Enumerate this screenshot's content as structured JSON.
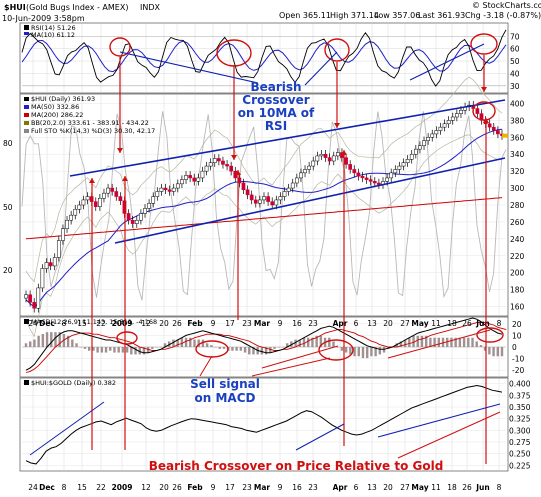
{
  "chart_data": {
    "type": "line",
    "header": {
      "symbol": "$HUI",
      "name": "(Gold Bugs Index - AMEX)",
      "exchange": "INDX",
      "date": "10-Jun-2009 3:58pm",
      "quote": {
        "open": "Open 365.11",
        "high": "High 371.14",
        "low": "Low 357.06",
        "last": "Last 361.93",
        "chg": "Chg -3.18 (-0.87%)"
      },
      "brand": "© StockCharts.com"
    },
    "x_tick_labels": [
      "24",
      "Dec",
      "8",
      "15",
      "22",
      "2009",
      "12",
      "20",
      "26",
      "Feb",
      "9",
      "17",
      "23",
      "Mar",
      "9",
      "16",
      "23",
      "Apr",
      "6",
      "13",
      "20",
      "27",
      "May",
      "11",
      "18",
      "26",
      "Jun",
      "8"
    ],
    "rsi_panel": {
      "legend": [
        "RSI(14) 51.26",
        "MA(10) 61.12"
      ],
      "y_ticks": [
        70,
        60,
        50,
        40,
        30
      ],
      "ylim": [
        25,
        80
      ]
    },
    "price_panel": {
      "legend": [
        "$HUI (Daily) 361.93",
        "MA(50) 332.86",
        "MA(200) 286.22",
        "BB(20,2.0) 333.61 - 383.91 - 434.22",
        "Full STO %K(14,3) %D(3) 30.30, 42.17"
      ],
      "legend_colors": [
        "#000000",
        "#1f1fcc",
        "#cc0000",
        "#7a7a00",
        "#888888"
      ],
      "y_ticks": [
        400,
        380,
        360,
        340,
        320,
        300,
        280,
        260,
        240,
        220,
        200,
        180,
        160
      ],
      "ylim": [
        150,
        410
      ],
      "sto_ticks": [
        80,
        50,
        20
      ],
      "closes": [
        174,
        165,
        158,
        182,
        205,
        212,
        208,
        218,
        238,
        252,
        262,
        268,
        275,
        280,
        286,
        290,
        284,
        278,
        288,
        294,
        300,
        296,
        290,
        285,
        270,
        262,
        258,
        262,
        270,
        276,
        282,
        290,
        296,
        300,
        298,
        296,
        300,
        305,
        310,
        315,
        312,
        308,
        312,
        320,
        326,
        330,
        335,
        332,
        328,
        326,
        320,
        312,
        306,
        298,
        292,
        286,
        282,
        286,
        290,
        284,
        280,
        286,
        290,
        296,
        300,
        306,
        312,
        318,
        322,
        326,
        332,
        338,
        340,
        336,
        332,
        338,
        342,
        336,
        328,
        322,
        318,
        314,
        312,
        310,
        308,
        306,
        304,
        308,
        312,
        318,
        322,
        326,
        330,
        334,
        340,
        346,
        350,
        356,
        360,
        364,
        368,
        372,
        376,
        380,
        384,
        388,
        392,
        396,
        398,
        394,
        388,
        380,
        376,
        372,
        368,
        364,
        362
      ]
    },
    "macd_panel": {
      "legend": [
        "MACD(12,26,9) 11.143, 15.311, -4.168"
      ],
      "y_ticks": [
        20,
        10,
        0,
        -10,
        -20
      ],
      "ylim": [
        -25,
        25
      ],
      "macd": [
        -20,
        -18,
        -15,
        -10,
        -5,
        0,
        4,
        8,
        11,
        13,
        14,
        14,
        13,
        12,
        11,
        10,
        9,
        8,
        7,
        6,
        6,
        5,
        4,
        3,
        2,
        0,
        -2,
        -4,
        -5,
        -5,
        -4,
        -3,
        -2,
        0,
        2,
        4,
        6,
        8,
        10,
        11,
        12,
        13,
        14,
        13,
        12,
        11,
        10,
        9,
        8,
        7,
        6,
        5,
        3,
        1,
        -1,
        -3,
        -4,
        -5,
        -5,
        -4,
        -3,
        -2,
        0,
        2,
        4,
        6,
        8,
        10,
        12,
        14,
        16,
        17,
        18,
        17,
        15,
        13,
        11,
        9,
        7,
        5,
        3,
        1,
        0,
        -1,
        -2,
        -2,
        -1,
        0,
        2,
        4,
        6,
        8,
        10,
        12,
        13,
        14,
        15,
        16,
        17,
        18,
        19,
        20,
        21,
        22,
        23,
        24,
        25,
        24,
        22,
        19,
        16,
        14,
        12,
        11
      ],
      "signal": [
        -22,
        -21,
        -19,
        -16,
        -12,
        -8,
        -4,
        0,
        3,
        6,
        8,
        10,
        11,
        12,
        12,
        12,
        11,
        11,
        10,
        9,
        8,
        8,
        7,
        6,
        5,
        4,
        2,
        0,
        -1,
        -2,
        -3,
        -3,
        -2,
        -2,
        -1,
        0,
        2,
        3,
        5,
        6,
        8,
        9,
        10,
        11,
        11,
        11,
        11,
        10,
        10,
        9,
        8,
        7,
        6,
        5,
        3,
        1,
        0,
        -1,
        -2,
        -3,
        -3,
        -2,
        -2,
        -1,
        0,
        2,
        3,
        5,
        7,
        8,
        10,
        12,
        13,
        14,
        15,
        15,
        14,
        13,
        12,
        10,
        9,
        7,
        5,
        4,
        2,
        1,
        0,
        0,
        0,
        1,
        2,
        3,
        4,
        6,
        7,
        8,
        10,
        11,
        12,
        13,
        14,
        15,
        16,
        17,
        18,
        19,
        20,
        21,
        21,
        21,
        20,
        19,
        17,
        16,
        15
      ]
    },
    "ratio_panel": {
      "legend": [
        "$HUI:$GOLD (Daily) 0.382"
      ],
      "y_ticks": [
        "0.400",
        "0.375",
        "0.350",
        "0.325",
        "0.300",
        "0.275",
        "0.250",
        "0.225"
      ],
      "ylim": [
        0.215,
        0.41
      ],
      "values": [
        0.235,
        0.23,
        0.228,
        0.24,
        0.255,
        0.262,
        0.265,
        0.272,
        0.282,
        0.292,
        0.3,
        0.306,
        0.31,
        0.314,
        0.318,
        0.32,
        0.316,
        0.312,
        0.318,
        0.322,
        0.326,
        0.322,
        0.318,
        0.314,
        0.305,
        0.3,
        0.298,
        0.3,
        0.305,
        0.31,
        0.314,
        0.318,
        0.322,
        0.325,
        0.324,
        0.322,
        0.32,
        0.318,
        0.316,
        0.314,
        0.312,
        0.308,
        0.306,
        0.304,
        0.3,
        0.298,
        0.296,
        0.3,
        0.304,
        0.308,
        0.312,
        0.316,
        0.32,
        0.326,
        0.332,
        0.338,
        0.342,
        0.34,
        0.334,
        0.328,
        0.32,
        0.312,
        0.306,
        0.3,
        0.296,
        0.292,
        0.29,
        0.292,
        0.296,
        0.3,
        0.306,
        0.312,
        0.318,
        0.324,
        0.33,
        0.336,
        0.342,
        0.348,
        0.352,
        0.356,
        0.36,
        0.364,
        0.368,
        0.372,
        0.376,
        0.38,
        0.384,
        0.388,
        0.392,
        0.394,
        0.396,
        0.394,
        0.39,
        0.386,
        0.384,
        0.382
      ]
    },
    "annotations": {
      "bearish_rsi": [
        "Bearish",
        "Crossover",
        "on 10MA of",
        "RSI"
      ],
      "sell_signal": [
        "Sell signal",
        "on MACD"
      ],
      "bearish_gold": "Bearish Crossover on Price Relative to Gold"
    }
  }
}
